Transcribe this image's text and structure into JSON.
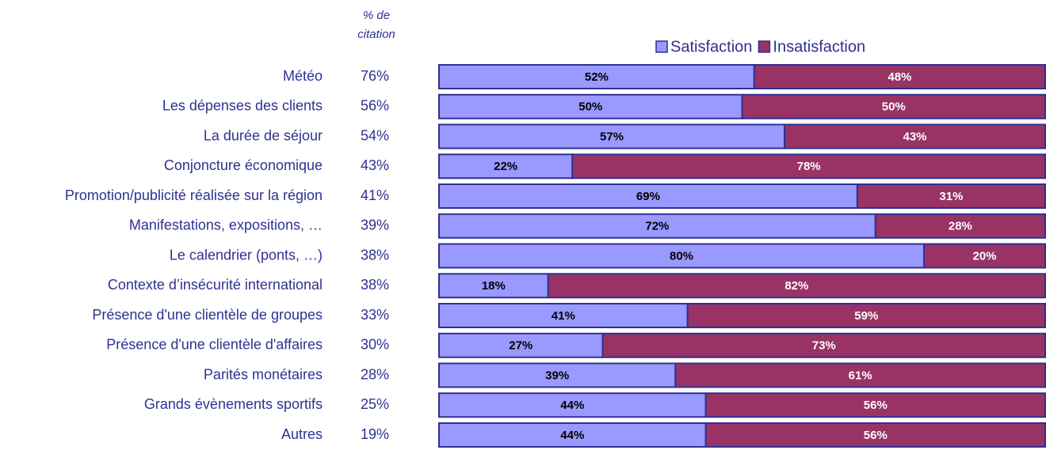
{
  "chart_data": {
    "type": "bar",
    "stacked": true,
    "orientation": "horizontal",
    "citation_header": "% de citation",
    "categories": [
      "Météo",
      "Les dépenses des clients",
      "La durée de séjour",
      "Conjoncture économique",
      "Promotion/publicité réalisée sur la région",
      "Manifestations, expositions, …",
      "Le calendrier (ponts, …)",
      "Contexte d’insécurité international",
      "Présence d'une clientèle de groupes",
      "Présence d'une clientèle d'affaires",
      "Parités monétaires",
      "Grands évènements sportifs",
      "Autres"
    ],
    "citation": [
      "76%",
      "56%",
      "54%",
      "43%",
      "41%",
      "39%",
      "38%",
      "38%",
      "33%",
      "30%",
      "28%",
      "25%",
      "19%"
    ],
    "series": [
      {
        "name": "Satisfaction",
        "color": "#9999ff",
        "label_color": "#000000",
        "values": [
          52,
          50,
          57,
          22,
          69,
          72,
          80,
          18,
          41,
          27,
          39,
          44,
          44
        ],
        "value_labels": [
          "52%",
          "50%",
          "57%",
          "22%",
          "69%",
          "72%",
          "80%",
          "18%",
          "41%",
          "27%",
          "39%",
          "44%",
          "44%"
        ]
      },
      {
        "name": "Insatisfaction",
        "color": "#993366",
        "label_color": "#ffffff",
        "values": [
          48,
          50,
          43,
          78,
          31,
          28,
          20,
          82,
          59,
          73,
          61,
          56,
          56
        ],
        "value_labels": [
          "48%",
          "50%",
          "43%",
          "78%",
          "31%",
          "28%",
          "20%",
          "82%",
          "59%",
          "73%",
          "61%",
          "56%",
          "56%"
        ]
      }
    ],
    "xlim": [
      0,
      100
    ],
    "legend": "top"
  }
}
